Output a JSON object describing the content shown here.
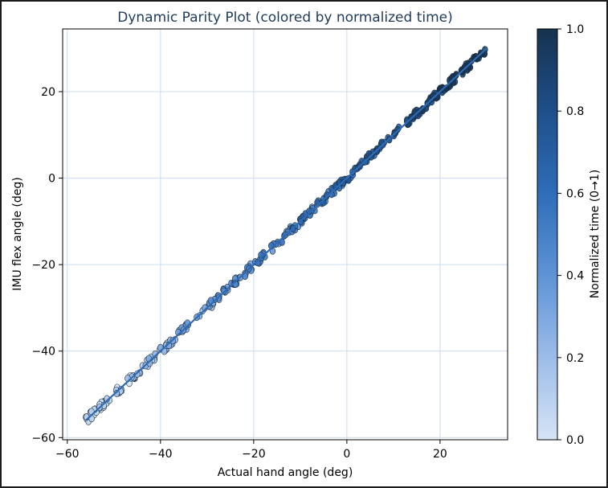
{
  "chart_data": {
    "type": "scatter",
    "title": "Dynamic Parity Plot (colored by normalized time)",
    "xlabel": "Actual hand angle (deg)",
    "ylabel": "IMU flex angle (deg)",
    "xlim": [
      -61.0,
      34.5
    ],
    "ylim": [
      -60.5,
      34.5
    ],
    "xticks": [
      -60,
      -40,
      -20,
      0,
      20
    ],
    "yticks": [
      -60,
      -40,
      -20,
      0,
      20
    ],
    "xtick_labels": [
      "−60",
      "−40",
      "−20",
      "0",
      "20"
    ],
    "ytick_labels": [
      "−60",
      "−40",
      "−20",
      "0",
      "20"
    ],
    "grid": true,
    "x_range": [
      -56,
      30
    ],
    "fit_line": {
      "slope": 1.0,
      "intercept": 0.0
    },
    "point_count": 360,
    "points_note": "Dense scatter tightly following y = x from about -56 to 30 deg; color increases with normalized time (light at low angles, dark at high angles).",
    "colorbar": {
      "label": "Normalized time (0→1)",
      "range": [
        0.0,
        1.0
      ],
      "ticks": [
        0.0,
        0.2,
        0.4,
        0.6,
        0.8,
        1.0
      ],
      "tick_labels": [
        "0.0",
        "0.2",
        "0.4",
        "0.6",
        "0.8",
        "1.0"
      ],
      "colormap_stops": [
        "#d6e4f5",
        "#9cbce8",
        "#5e93d6",
        "#2f6db8",
        "#1e4f8a",
        "#17324f"
      ]
    },
    "colors": {
      "title": "#1f3b5a",
      "grid": "#c9dcef",
      "fit_line": "#2e6bb5",
      "point_edge": "#1a2a3a"
    }
  }
}
